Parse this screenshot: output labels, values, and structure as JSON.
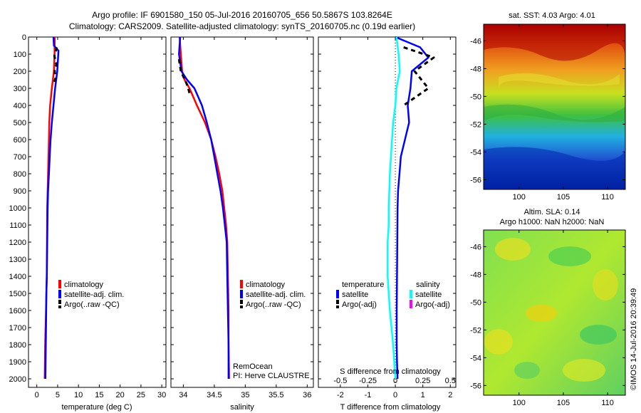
{
  "header": {
    "title_line1": "Argo profile: IF 6901580_150 05-Jul-2016 20160705_656 50.5867S 103.8264E",
    "title_line2": "Climatology: CARS2009. Satellite-adjusted climatology: synTS_20160705.nc (0.19d earlier)"
  },
  "side": {
    "sst_title": "sat. SST: 4.03 Argo: 4.01",
    "sla_title1": "Altim. SLA: 0.14",
    "sla_title2": "Argo h1000: NaN h2000: NaN",
    "credit": "©IMOS 14-Jul-2016 20:39:49"
  },
  "colors": {
    "climatology": "#ff0000",
    "satellite": "#0000ff",
    "argo": "#000000",
    "s_satellite": "#00ffff",
    "s_argo": "#ff00ff"
  },
  "chart_data": [
    {
      "type": "line",
      "xlabel": "temperature (deg C)",
      "ylabel": "",
      "xlim": [
        -2,
        31
      ],
      "ylim": [
        2050,
        0
      ],
      "xticks": [
        "0",
        "5",
        "10",
        "15",
        "20",
        "25",
        "30"
      ],
      "yticks": [
        "0",
        "100",
        "200",
        "300",
        "400",
        "500",
        "600",
        "700",
        "800",
        "900",
        "1000",
        "1100",
        "1200",
        "1300",
        "1400",
        "1500",
        "1600",
        "1700",
        "1800",
        "1900",
        "2000"
      ],
      "legend": [
        "climatology",
        "satellite-adj. clim.",
        "Argo(..raw -QC)"
      ],
      "series": [
        {
          "name": "climatology",
          "x": [
            4.3,
            4.25,
            4.1,
            3.6,
            3.2,
            3.0,
            2.9,
            2.8,
            2.7,
            2.6,
            2.5,
            2.45,
            2.4,
            2.3,
            2.2,
            2.1,
            2.0,
            1.9
          ],
          "y": [
            0,
            100,
            200,
            300,
            400,
            500,
            600,
            700,
            800,
            900,
            1000,
            1200,
            1400,
            1500,
            1600,
            1700,
            1800,
            2000
          ]
        },
        {
          "name": "satellite-adj. clim.",
          "x": [
            4.0,
            4.1,
            5.2,
            4.9,
            4.4,
            4.0,
            3.6,
            3.3,
            3.1,
            2.9,
            2.7,
            2.6,
            2.5,
            2.4,
            2.3,
            2.2,
            2.1,
            2.05
          ],
          "y": [
            0,
            50,
            80,
            200,
            300,
            400,
            500,
            600,
            700,
            800,
            900,
            1000,
            1200,
            1400,
            1500,
            1700,
            1900,
            2000
          ]
        },
        {
          "name": "Argo(..raw -QC)",
          "x": [
            4.8,
            4.2,
            4.7,
            4.3,
            4.5,
            4.1
          ],
          "y": [
            60,
            110,
            160,
            200,
            240,
            270
          ]
        }
      ]
    },
    {
      "type": "line",
      "xlabel": "salinity",
      "ylabel": "",
      "xlim": [
        33.8,
        36.1
      ],
      "ylim": [
        2050,
        0
      ],
      "xticks": [
        "34",
        "34.5",
        "35",
        "35.5",
        "36"
      ],
      "legend": [
        "climatology",
        "satellite-adj. clim.",
        "Argo(..raw -QC)"
      ],
      "annotations": [
        "RemOcean",
        "PI: Herve CLAUSTRE"
      ],
      "series": [
        {
          "name": "climatology",
          "x": [
            33.94,
            33.96,
            33.98,
            34.02,
            34.1,
            34.22,
            34.35,
            34.45,
            34.52,
            34.58,
            34.63,
            34.66,
            34.69,
            34.71,
            34.72,
            34.73,
            34.73,
            34.74
          ],
          "y": [
            0,
            100,
            200,
            250,
            300,
            400,
            500,
            600,
            700,
            800,
            900,
            1000,
            1100,
            1200,
            1400,
            1600,
            1800,
            2000
          ]
        },
        {
          "name": "satellite-adj. clim.",
          "x": [
            33.95,
            33.93,
            33.97,
            34.06,
            34.18,
            34.3,
            34.38,
            34.45,
            34.5,
            34.55,
            34.6,
            34.64,
            34.67,
            34.7,
            34.71,
            34.72,
            34.73,
            34.73
          ],
          "y": [
            0,
            100,
            200,
            250,
            300,
            400,
            500,
            600,
            700,
            800,
            900,
            1000,
            1100,
            1200,
            1400,
            1600,
            1800,
            2000
          ]
        },
        {
          "name": "Argo(..raw -QC)",
          "x": [
            33.93,
            33.96,
            34.05,
            34.08,
            34.1
          ],
          "y": [
            130,
            200,
            270,
            300,
            330
          ]
        }
      ]
    },
    {
      "type": "line",
      "xlabel": "T difference from climatology",
      "x2label": "S difference from climatology",
      "xlim": [
        -2.8,
        2.2
      ],
      "ylim": [
        2050,
        0
      ],
      "xticks": [
        "-2",
        "-1",
        "0",
        "1",
        "2"
      ],
      "x2ticks": [
        "-0.5",
        "-0.25",
        "0",
        "0.25",
        "0.5"
      ],
      "legend": [
        "temperature",
        "satellite",
        "Argo(-adj)",
        "salinity",
        "satellite",
        "Argo(-adj)"
      ],
      "series": [
        {
          "name": "satellite",
          "quantity": "temperature",
          "x": [
            0.0,
            0.9,
            1.2,
            0.6,
            0.55,
            0.45,
            0.5,
            0.35,
            0.2,
            0.15,
            0.1,
            0.08,
            0.07,
            0.06,
            0.05,
            0.05,
            0.06,
            0.08
          ],
          "y": [
            0,
            60,
            120,
            200,
            300,
            400,
            500,
            600,
            700,
            800,
            900,
            1000,
            1200,
            1400,
            1600,
            1800,
            1900,
            2000
          ]
        },
        {
          "name": "Argo(-adj)",
          "quantity": "temperature",
          "x": [
            0.3,
            1.4,
            0.7,
            1.2,
            0.3
          ],
          "y": [
            60,
            120,
            200,
            300,
            400
          ]
        },
        {
          "name": "satellite",
          "quantity": "salinity",
          "x": [
            0.01,
            0.03,
            0.04,
            0.01,
            0.0,
            -0.02,
            -0.03,
            -0.04,
            -0.05,
            -0.06,
            -0.06,
            -0.07,
            -0.07,
            -0.06,
            -0.05,
            -0.02,
            -0.01,
            0.0
          ],
          "y": [
            0,
            100,
            200,
            300,
            400,
            500,
            600,
            700,
            800,
            1000,
            1100,
            1200,
            1400,
            1500,
            1600,
            1800,
            1900,
            2000
          ]
        }
      ]
    },
    {
      "type": "heatmap",
      "title": "sat. SST: 4.03 Argo: 4.01",
      "xticks": [
        "100",
        "105",
        "110"
      ],
      "yticks": [
        "-46",
        "-48",
        "-50",
        "-52",
        "-54",
        "-56"
      ],
      "xlim": [
        96,
        112
      ],
      "ylim": [
        -56.7,
        -44.8
      ]
    },
    {
      "type": "heatmap",
      "title": "Altim. SLA: 0.14",
      "xticks": [
        "100",
        "105",
        "110"
      ],
      "yticks": [
        "-46",
        "-48",
        "-50",
        "-52",
        "-54",
        "-56"
      ],
      "xlim": [
        96,
        112
      ],
      "ylim": [
        -56.7,
        -44.8
      ]
    }
  ]
}
